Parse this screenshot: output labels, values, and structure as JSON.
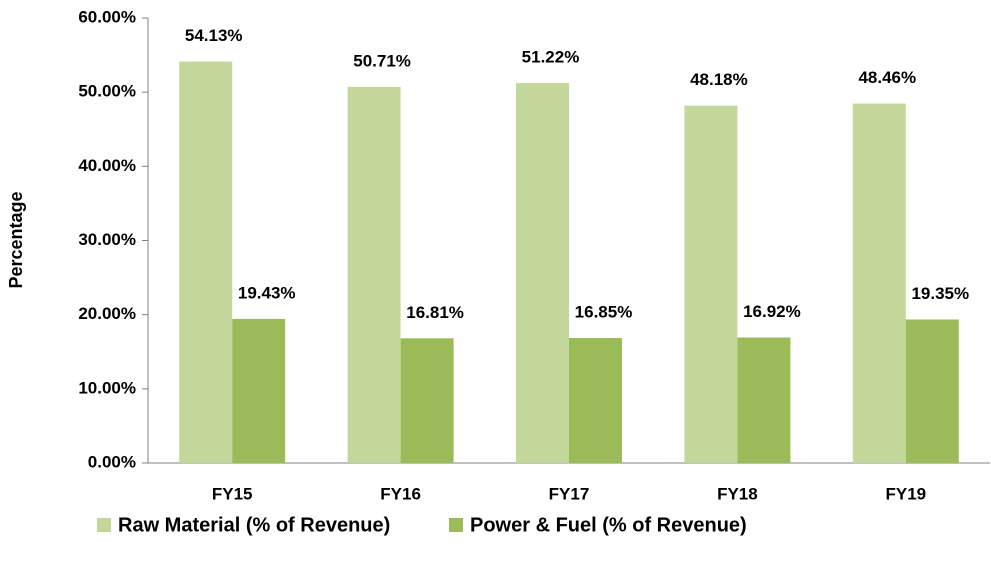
{
  "chart_data": {
    "type": "bar",
    "y_label": "Percentage",
    "categories": [
      "FY15",
      "FY16",
      "FY17",
      "FY18",
      "FY19"
    ],
    "series": [
      {
        "name": "Raw Material (% of Revenue)",
        "color": "#c4d79b",
        "values": [
          54.13,
          50.71,
          51.22,
          48.18,
          48.46
        ],
        "value_labels": [
          "54.13%",
          "50.71%",
          "51.22%",
          "48.18%",
          "48.46%"
        ]
      },
      {
        "name": "Power & Fuel (% of Revenue)",
        "color": "#9bbb59",
        "values": [
          19.43,
          16.81,
          16.85,
          16.92,
          19.35
        ],
        "value_labels": [
          "19.43%",
          "16.81%",
          "16.85%",
          "16.92%",
          "19.35%"
        ]
      }
    ],
    "ylim": [
      0,
      60
    ],
    "yticks": [
      {
        "value": 0,
        "label": "0.00%"
      },
      {
        "value": 10,
        "label": "10.00%"
      },
      {
        "value": 20,
        "label": "20.00%"
      },
      {
        "value": 30,
        "label": "30.00%"
      },
      {
        "value": 40,
        "label": "40.00%"
      },
      {
        "value": 50,
        "label": "50.00%"
      },
      {
        "value": 60,
        "label": "60.00%"
      }
    ],
    "grid": false,
    "legend": "bottom"
  }
}
